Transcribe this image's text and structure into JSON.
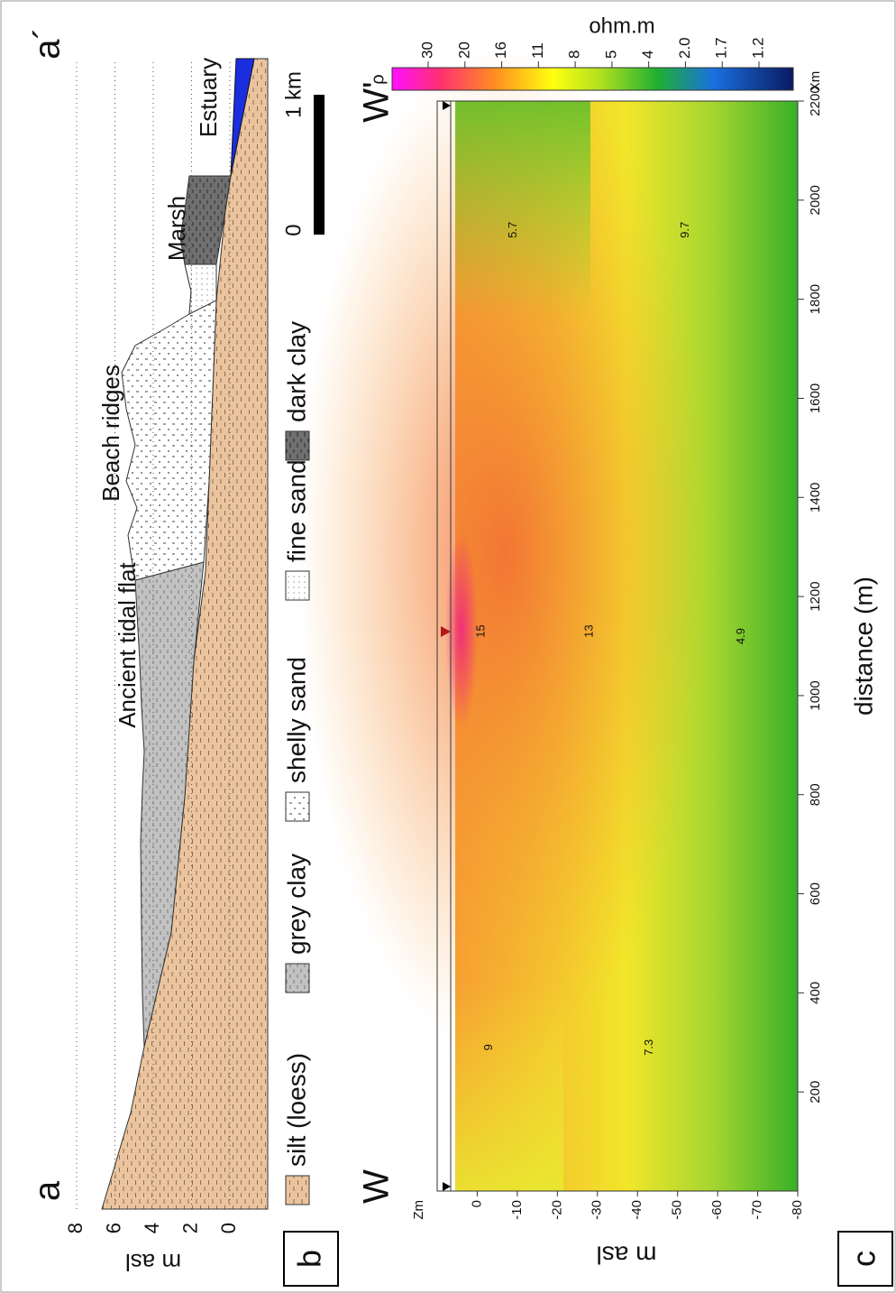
{
  "chart_data": [
    {
      "type": "cross-section",
      "panel_label": "b",
      "start_label": "a",
      "end_label": "a´",
      "ylabel": "m asl",
      "ylim": [
        -2,
        9
      ],
      "yticks": [
        0,
        2,
        4,
        6,
        8
      ],
      "grid": true,
      "annotations": [
        "Ancient tidal flat",
        "Beach ridges",
        "Marsh",
        "Estuary"
      ],
      "scale_bar": [
        "0",
        "1 km"
      ],
      "legend": [
        "silt (loess)",
        "grey clay",
        "shelly sand",
        "fine sand",
        "dark clay"
      ]
    },
    {
      "type": "heatmap",
      "panel_label": "c",
      "start_label": "W",
      "end_label": "W'",
      "xlabel": "distance (m)",
      "x_unit": "Xm",
      "ylabel": "m asl",
      "ylabel_top": "Zm",
      "xlim": [
        0,
        2200
      ],
      "xticks": [
        200,
        400,
        600,
        800,
        1000,
        1200,
        1400,
        1600,
        1800,
        2000,
        2200
      ],
      "ylim": [
        -80,
        10
      ],
      "yticks": [
        0,
        -10,
        -20,
        -30,
        -40,
        -50,
        -60,
        -70,
        -80
      ],
      "colorbar": {
        "label": "ohm.m",
        "symbol": "ρ",
        "ticks": [
          30,
          20,
          16,
          11,
          8,
          5,
          4,
          {
            "value": 2,
            "label": "2.0"
          },
          1.7,
          1.2
        ]
      },
      "contour_labels": [
        {
          "value": 15,
          "x": 1130,
          "y": -1
        },
        {
          "value": 13,
          "x": 1130,
          "y": -28
        },
        {
          "value": 4.9,
          "x": 1120,
          "y": -66
        },
        {
          "value": 9,
          "x": 290,
          "y": -3
        },
        {
          "value": 7.3,
          "x": 290,
          "y": -43
        },
        {
          "value": 5.7,
          "x": 1940,
          "y": -9
        },
        {
          "value": 9.7,
          "x": 1940,
          "y": -52
        }
      ]
    }
  ]
}
